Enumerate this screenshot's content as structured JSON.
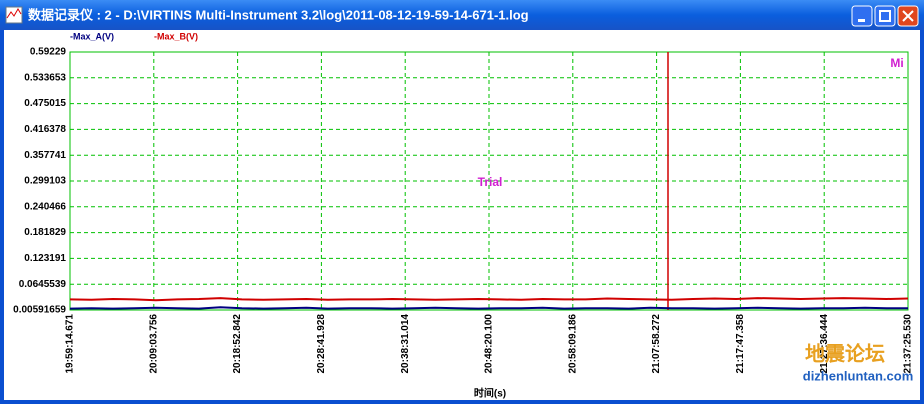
{
  "window_title": "数据记录仪 : 2 - D:\\VIRTINS Multi-Instrument 3.2\\log\\2011-08-12-19-59-14-671-1.log",
  "chart_data": {
    "type": "line",
    "annotations": [
      "Trial",
      "Mi"
    ],
    "xlabel": "时间(s)",
    "xticks": [
      "19:59:14.671",
      "20:09:03.756",
      "20:18:52.842",
      "20:28:41.928",
      "20:38:31.014",
      "20:48:20.100",
      "20:58:09.186",
      "21:07:58.272",
      "21:17:47.358",
      "21:27:36.444",
      "21:37:25.530"
    ],
    "ylim": [
      0.00591659,
      0.59229
    ],
    "yticks": [
      0.59229,
      0.533653,
      0.475015,
      0.416378,
      0.357741,
      0.299103,
      0.240466,
      0.181829,
      0.123191,
      0.0645539,
      0.00591659
    ],
    "grid": true,
    "series": [
      {
        "name": "-Max_A(V)",
        "color": "#000080",
        "values": [
          0.009,
          0.01,
          0.009,
          0.01,
          0.011,
          0.01,
          0.009,
          0.012,
          0.01,
          0.009,
          0.01,
          0.011,
          0.009,
          0.01,
          0.01,
          0.009,
          0.01,
          0.011,
          0.01,
          0.009,
          0.01,
          0.01,
          0.011,
          0.009,
          0.01,
          0.01,
          0.009,
          0.011,
          0.01,
          0.01,
          0.009,
          0.01,
          0.011,
          0.01,
          0.009,
          0.01,
          0.01,
          0.011,
          0.01,
          0.01
        ]
      },
      {
        "name": "-Max_B(V)",
        "color": "#d00000",
        "values": [
          0.03,
          0.029,
          0.031,
          0.03,
          0.028,
          0.03,
          0.031,
          0.033,
          0.03,
          0.029,
          0.03,
          0.031,
          0.029,
          0.03,
          0.03,
          0.031,
          0.03,
          0.029,
          0.03,
          0.031,
          0.03,
          0.029,
          0.031,
          0.03,
          0.03,
          0.032,
          0.031,
          0.03,
          0.029,
          0.031,
          0.032,
          0.031,
          0.033,
          0.032,
          0.031,
          0.032,
          0.033,
          0.032,
          0.031,
          0.032
        ]
      }
    ]
  },
  "watermark": {
    "title": "地震论坛",
    "url": "dizhenluntan.com"
  }
}
